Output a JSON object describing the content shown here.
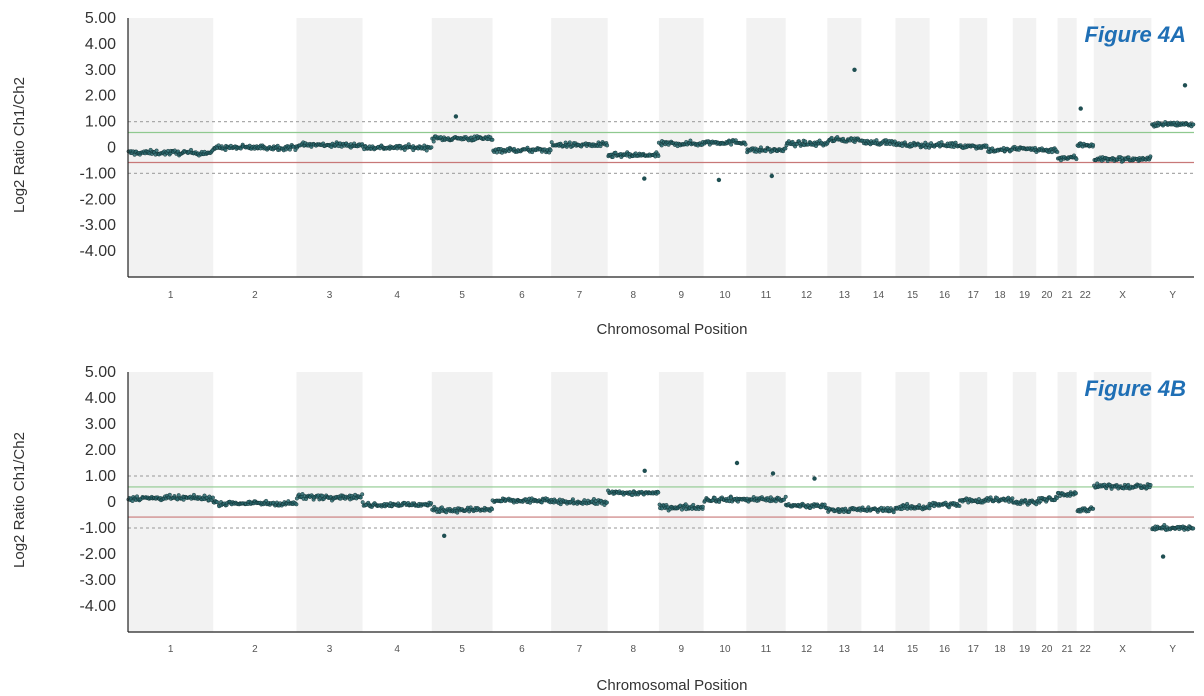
{
  "figures": [
    {
      "title": "Figure 4A",
      "ylabel": "Log2 Ratio Ch1/Ch2",
      "xlabel": "Chromosomal Position"
    },
    {
      "title": "Figure 4B",
      "ylabel": "Log2 Ratio Ch1/Ch2",
      "xlabel": "Chromosomal Position"
    }
  ],
  "chart_data": [
    {
      "type": "scatter",
      "title": "Figure 4A",
      "xlabel": "Chromosomal Position",
      "ylabel": "Log2 Ratio Ch1/Ch2",
      "ylim": [
        -5.0,
        5.0
      ],
      "y_ticks": [
        "5.00",
        "4.00",
        "3.00",
        "2.00",
        "1.00",
        "0",
        "-1.00",
        "-2.00",
        "-3.00",
        "-4.00"
      ],
      "x_categories": [
        "1",
        "2",
        "3",
        "4",
        "5",
        "6",
        "7",
        "8",
        "9",
        "10",
        "11",
        "12",
        "13",
        "14",
        "15",
        "16",
        "17",
        "18",
        "19",
        "20",
        "21",
        "22",
        "X",
        "Y"
      ],
      "threshold_lines": [
        {
          "value": 0.58,
          "color": "#8fc98f",
          "style": "solid"
        },
        {
          "value": -0.58,
          "color": "#c87878",
          "style": "solid"
        },
        {
          "value": 1.0,
          "color": "#aaaaaa",
          "style": "dashed"
        },
        {
          "value": -1.0,
          "color": "#aaaaaa",
          "style": "dashed"
        }
      ],
      "segments": [
        {
          "chromosome": "1",
          "mean_log2_ratio": -0.2
        },
        {
          "chromosome": "2",
          "mean_log2_ratio": 0.0
        },
        {
          "chromosome": "3",
          "mean_log2_ratio": 0.1
        },
        {
          "chromosome": "4",
          "mean_log2_ratio": 0.0
        },
        {
          "chromosome": "5",
          "mean_log2_ratio": 0.35
        },
        {
          "chromosome": "6",
          "mean_log2_ratio": -0.1
        },
        {
          "chromosome": "7",
          "mean_log2_ratio": 0.1
        },
        {
          "chromosome": "8",
          "mean_log2_ratio": -0.3
        },
        {
          "chromosome": "9",
          "mean_log2_ratio": 0.15
        },
        {
          "chromosome": "10",
          "mean_log2_ratio": 0.2
        },
        {
          "chromosome": "11",
          "mean_log2_ratio": -0.1
        },
        {
          "chromosome": "12",
          "mean_log2_ratio": 0.15
        },
        {
          "chromosome": "13",
          "mean_log2_ratio": 0.3
        },
        {
          "chromosome": "14",
          "mean_log2_ratio": 0.2
        },
        {
          "chromosome": "15",
          "mean_log2_ratio": 0.1
        },
        {
          "chromosome": "16",
          "mean_log2_ratio": 0.1
        },
        {
          "chromosome": "17",
          "mean_log2_ratio": 0.05
        },
        {
          "chromosome": "18",
          "mean_log2_ratio": -0.1
        },
        {
          "chromosome": "19",
          "mean_log2_ratio": -0.05
        },
        {
          "chromosome": "20",
          "mean_log2_ratio": -0.1
        },
        {
          "chromosome": "21",
          "mean_log2_ratio": -0.4
        },
        {
          "chromosome": "22",
          "mean_log2_ratio": 0.1
        },
        {
          "chromosome": "X",
          "mean_log2_ratio": -0.45
        },
        {
          "chromosome": "Y",
          "mean_log2_ratio": 0.9
        }
      ],
      "outliers": [
        {
          "chromosome": "13",
          "value": 3.0
        },
        {
          "chromosome": "Y",
          "value": 2.4
        },
        {
          "chromosome": "22",
          "value": 1.5
        },
        {
          "chromosome": "5",
          "value": 1.2
        },
        {
          "chromosome": "8",
          "value": -1.2
        },
        {
          "chromosome": "10",
          "value": -1.25
        },
        {
          "chromosome": "11",
          "value": -1.1
        }
      ]
    },
    {
      "type": "scatter",
      "title": "Figure 4B",
      "xlabel": "Chromosomal Position",
      "ylabel": "Log2 Ratio Ch1/Ch2",
      "ylim": [
        -5.0,
        5.0
      ],
      "y_ticks": [
        "5.00",
        "4.00",
        "3.00",
        "2.00",
        "1.00",
        "0",
        "-1.00",
        "-2.00",
        "-3.00",
        "-4.00"
      ],
      "x_categories": [
        "1",
        "2",
        "3",
        "4",
        "5",
        "6",
        "7",
        "8",
        "9",
        "10",
        "11",
        "12",
        "13",
        "14",
        "15",
        "16",
        "17",
        "18",
        "19",
        "20",
        "21",
        "22",
        "X",
        "Y"
      ],
      "threshold_lines": [
        {
          "value": 0.58,
          "color": "#8fc98f",
          "style": "solid"
        },
        {
          "value": -0.58,
          "color": "#c87878",
          "style": "solid"
        },
        {
          "value": 1.0,
          "color": "#aaaaaa",
          "style": "dashed"
        },
        {
          "value": -1.0,
          "color": "#aaaaaa",
          "style": "dashed"
        }
      ],
      "segments": [
        {
          "chromosome": "1",
          "mean_log2_ratio": 0.15
        },
        {
          "chromosome": "2",
          "mean_log2_ratio": -0.05
        },
        {
          "chromosome": "3",
          "mean_log2_ratio": 0.2
        },
        {
          "chromosome": "4",
          "mean_log2_ratio": -0.1
        },
        {
          "chromosome": "5",
          "mean_log2_ratio": -0.3
        },
        {
          "chromosome": "6",
          "mean_log2_ratio": 0.05
        },
        {
          "chromosome": "7",
          "mean_log2_ratio": 0.0
        },
        {
          "chromosome": "8",
          "mean_log2_ratio": 0.35
        },
        {
          "chromosome": "9",
          "mean_log2_ratio": -0.2
        },
        {
          "chromosome": "10",
          "mean_log2_ratio": 0.1
        },
        {
          "chromosome": "11",
          "mean_log2_ratio": 0.1
        },
        {
          "chromosome": "12",
          "mean_log2_ratio": -0.15
        },
        {
          "chromosome": "13",
          "mean_log2_ratio": -0.3
        },
        {
          "chromosome": "14",
          "mean_log2_ratio": -0.3
        },
        {
          "chromosome": "15",
          "mean_log2_ratio": -0.2
        },
        {
          "chromosome": "16",
          "mean_log2_ratio": -0.1
        },
        {
          "chromosome": "17",
          "mean_log2_ratio": 0.05
        },
        {
          "chromosome": "18",
          "mean_log2_ratio": 0.1
        },
        {
          "chromosome": "19",
          "mean_log2_ratio": 0.0
        },
        {
          "chromosome": "20",
          "mean_log2_ratio": 0.1
        },
        {
          "chromosome": "21",
          "mean_log2_ratio": 0.3
        },
        {
          "chromosome": "22",
          "mean_log2_ratio": -0.3
        },
        {
          "chromosome": "X",
          "mean_log2_ratio": 0.6
        },
        {
          "chromosome": "Y",
          "mean_log2_ratio": -1.0
        }
      ],
      "outliers": [
        {
          "chromosome": "10",
          "value": 1.5
        },
        {
          "chromosome": "8",
          "value": 1.2
        },
        {
          "chromosome": "11",
          "value": 1.1
        },
        {
          "chromosome": "12",
          "value": 0.9
        },
        {
          "chromosome": "5",
          "value": -1.3
        },
        {
          "chromosome": "Y",
          "value": -2.1
        }
      ]
    }
  ]
}
